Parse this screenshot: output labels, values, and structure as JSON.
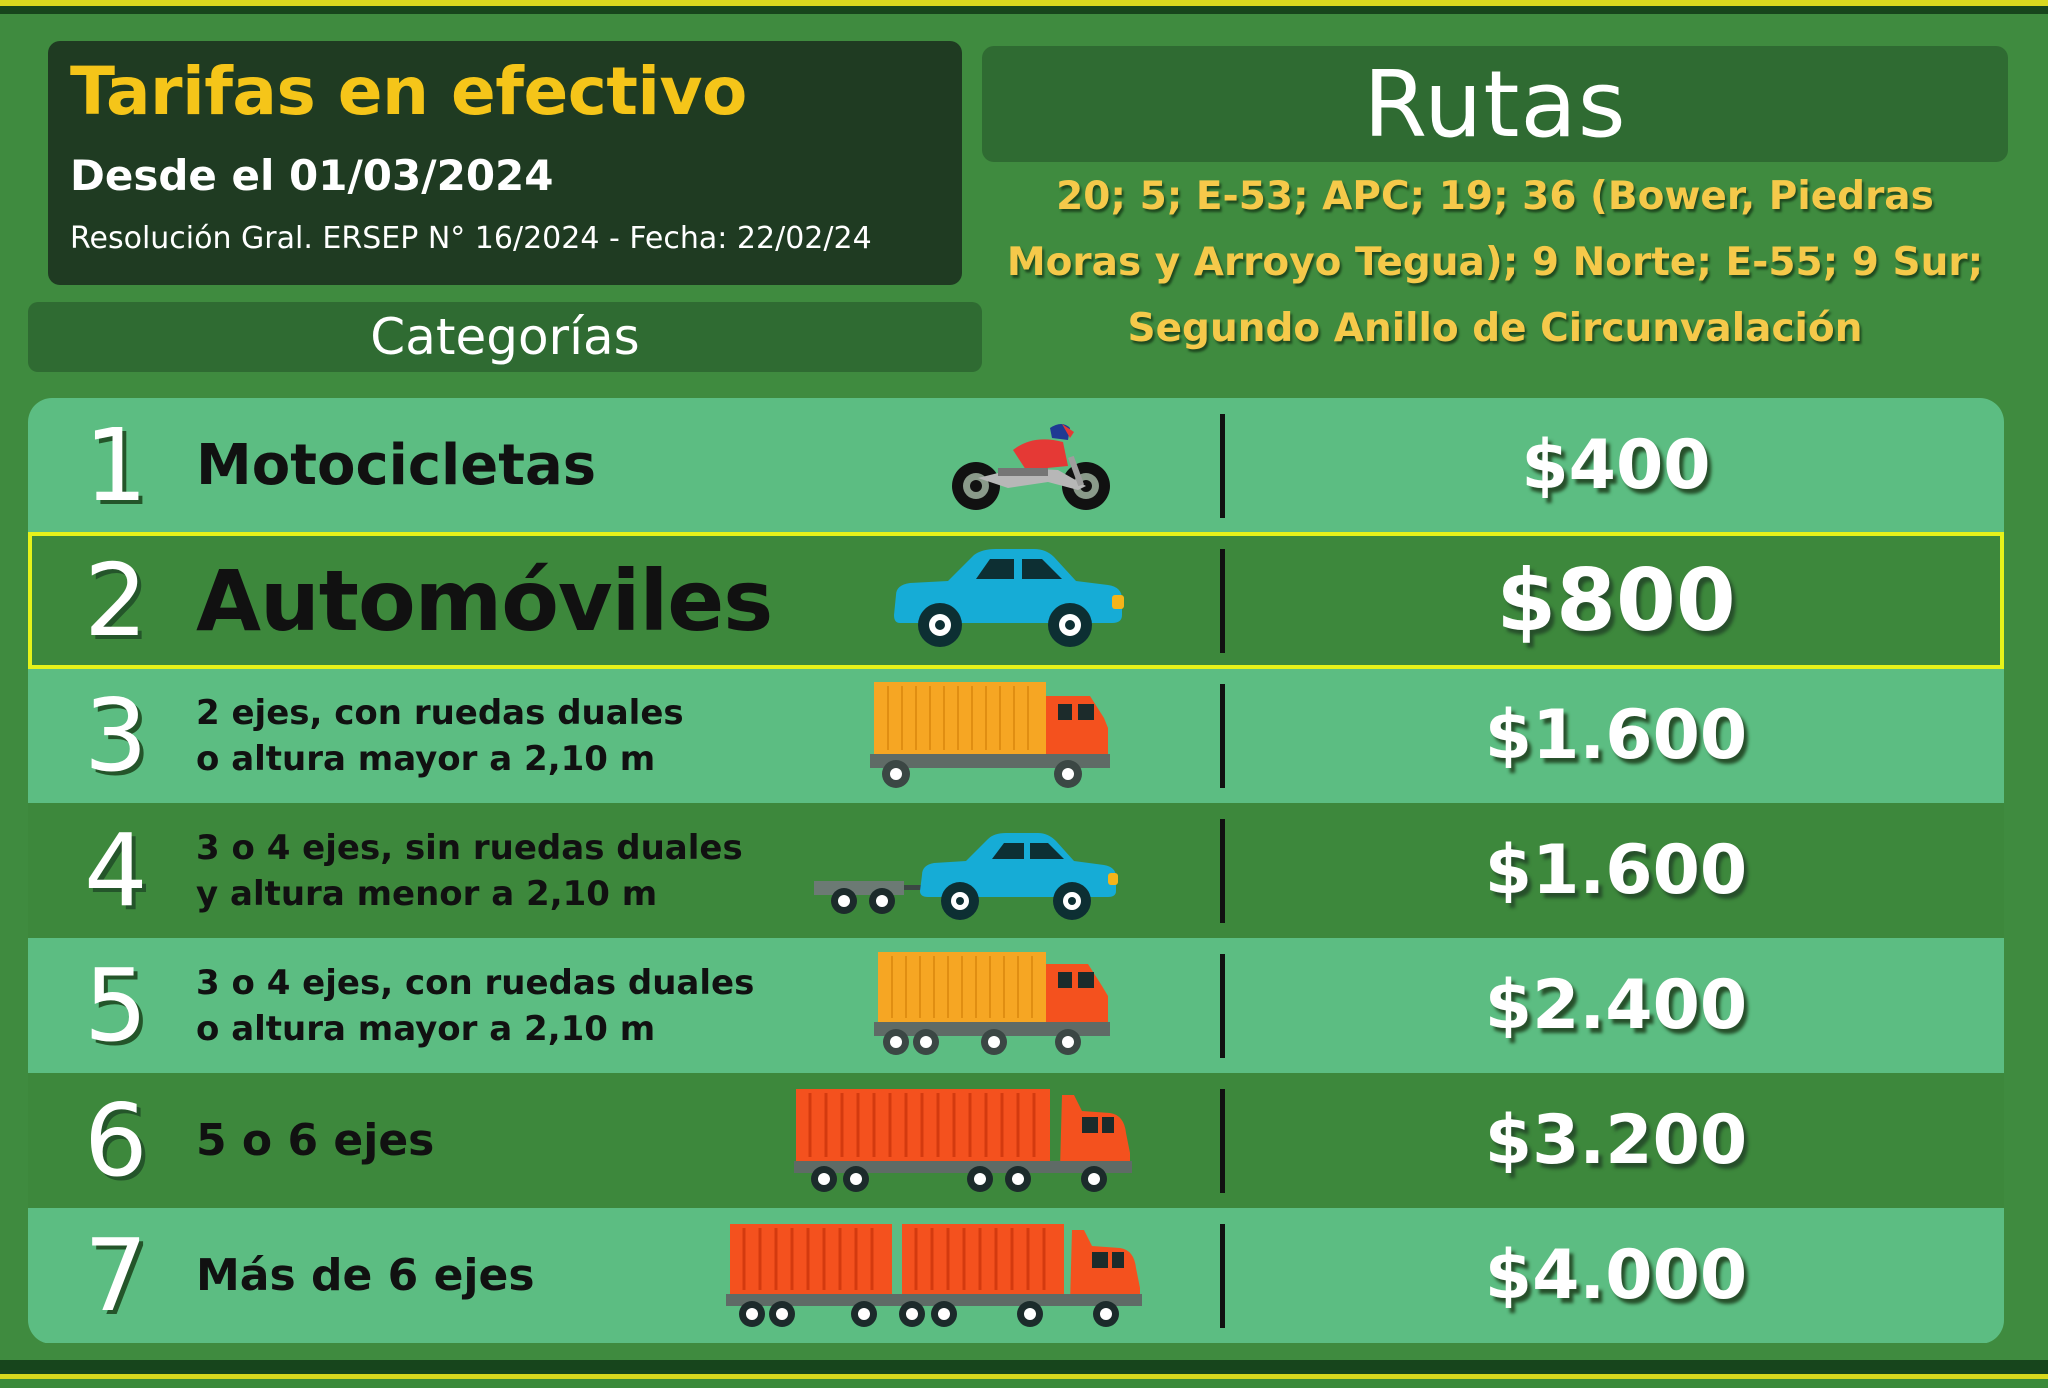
{
  "header": {
    "title": "Tarifas en efectivo",
    "since": "Desde el 01/03/2024",
    "resolution": "Resolución Gral. ERSEP N° 16/2024 - Fecha:  22/02/24"
  },
  "categories_header": "Categorías",
  "routes": {
    "header": "Rutas",
    "lines": [
      "20; 5; E-53; APC; 19; 36 (Bower, Piedras",
      "Moras y Arroyo Tegua); 9 Norte; E-55; 9 Sur;",
      "Segundo Anillo de Circunvalación"
    ]
  },
  "categories": [
    {
      "number": "1",
      "label": [
        "Motocicletas"
      ],
      "price": "$400",
      "vehicle": "motorcycle-icon"
    },
    {
      "number": "2",
      "label": [
        "Automóviles"
      ],
      "price": "$800",
      "vehicle": "car-icon",
      "highlighted": true
    },
    {
      "number": "3",
      "label": [
        "2 ejes, con ruedas duales",
        "o altura mayor a 2,10 m"
      ],
      "price": "$1.600",
      "vehicle": "truck-2-axle-icon"
    },
    {
      "number": "4",
      "label": [
        "3 o 4 ejes, sin ruedas duales",
        "y altura menor a 2,10 m"
      ],
      "price": "$1.600",
      "vehicle": "car-with-trailer-icon"
    },
    {
      "number": "5",
      "label": [
        "3 o 4 ejes, con ruedas duales",
        "o altura mayor a 2,10 m"
      ],
      "price": "$2.400",
      "vehicle": "truck-3-axle-icon"
    },
    {
      "number": "6",
      "label": [
        "5 o 6 ejes"
      ],
      "price": "$3.200",
      "vehicle": "semi-truck-icon"
    },
    {
      "number": "7",
      "label": [
        "Más de 6 ejes"
      ],
      "price": "$4.000",
      "vehicle": "double-trailer-truck-icon"
    }
  ],
  "colors": {
    "background": "#3f8b3f",
    "row_light": "#5cbd82",
    "row_dark": "#3d883c",
    "title_yellow": "#f5c519",
    "routes_yellow": "#f5c94a",
    "highlight_border": "#e6f21a",
    "header_box": "#1f3b22"
  }
}
